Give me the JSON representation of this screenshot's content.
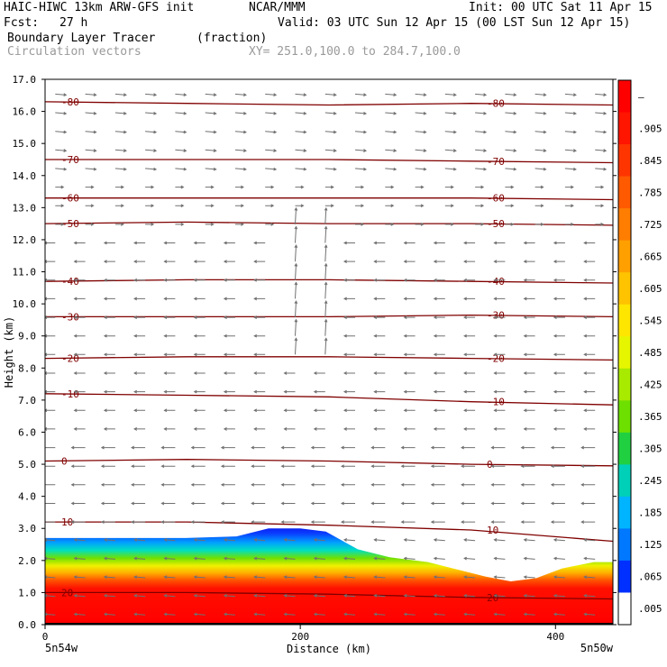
{
  "header": {
    "model": "HAIC-HIWC 13km ARW-GFS init",
    "center": "NCAR/MMM",
    "init": "Init: 00 UTC Sat 11 Apr 15",
    "fcst_label": "Fcst:",
    "fcst_value": "27 h",
    "valid": "Valid: 03 UTC Sun 12 Apr 15 (00 LST Sun 12 Apr 15)",
    "field": "Boundary Layer Tracer",
    "field_units": "(fraction)",
    "overlay": "Circulation vectors",
    "xy": "XY= 251.0,100.0 to 284.7,100.0"
  },
  "chart_data": {
    "type": "heatmap",
    "title": "Boundary Layer Tracer",
    "ylabel": "Height (km)",
    "xlabel": "Distance (km)",
    "xlim": [
      0,
      445
    ],
    "ylim": [
      0,
      17
    ],
    "x_ticks": [
      0,
      200,
      400
    ],
    "y_ticks": [
      "0.0",
      "1.0",
      "2.0",
      "3.0",
      "4.0",
      "5.0",
      "6.0",
      "7.0",
      "8.0",
      "9.0",
      "10.0",
      "11.0",
      "12.0",
      "13.0",
      "14.0",
      "15.0",
      "16.0",
      "17.0"
    ],
    "x_end_labels": [
      "5n54w",
      "5n50w"
    ],
    "colorbar_labels": [
      "–",
      ".905",
      ".845",
      ".785",
      ".725",
      ".665",
      ".605",
      ".545",
      ".485",
      ".425",
      ".365",
      ".305",
      ".245",
      ".185",
      ".125",
      ".065",
      ".005"
    ],
    "colorbar_colors": [
      "#ff0000",
      "#ff1500",
      "#ff3500",
      "#ff5a00",
      "#ff7d00",
      "#ffa000",
      "#ffc300",
      "#ffe600",
      "#e6f500",
      "#a8ea00",
      "#6ee000",
      "#20d040",
      "#00d0b8",
      "#00b4ff",
      "#0078ff",
      "#0030ff",
      "#ffffff"
    ],
    "tracer_top_km": [
      [
        0,
        2.7
      ],
      [
        60,
        2.7
      ],
      [
        110,
        2.7
      ],
      [
        150,
        2.75
      ],
      [
        175,
        3.0
      ],
      [
        200,
        3.0
      ],
      [
        220,
        2.9
      ],
      [
        245,
        2.35
      ],
      [
        270,
        2.1
      ],
      [
        300,
        1.95
      ],
      [
        325,
        1.7
      ],
      [
        345,
        1.5
      ],
      [
        365,
        1.35
      ],
      [
        385,
        1.45
      ],
      [
        405,
        1.75
      ],
      [
        430,
        1.95
      ],
      [
        445,
        1.95
      ]
    ],
    "temperature_contours": [
      {
        "value": 20,
        "label": "20",
        "km": [
          1.0,
          1.0,
          0.95,
          0.85,
          0.8
        ]
      },
      {
        "value": 10,
        "label": "10",
        "km": [
          3.2,
          3.2,
          3.1,
          2.95,
          2.6
        ]
      },
      {
        "value": 0,
        "label": "0",
        "km": [
          5.1,
          5.15,
          5.1,
          5.0,
          4.95
        ]
      },
      {
        "value": -10,
        "label": "-10",
        "km": [
          7.2,
          7.15,
          7.1,
          6.95,
          6.85
        ]
      },
      {
        "value": -20,
        "label": "-20",
        "km": [
          8.3,
          8.35,
          8.35,
          8.3,
          8.25
        ]
      },
      {
        "value": -30,
        "label": "-30",
        "km": [
          9.6,
          9.6,
          9.6,
          9.65,
          9.6
        ]
      },
      {
        "value": -40,
        "label": "-40",
        "km": [
          10.7,
          10.75,
          10.75,
          10.7,
          10.65
        ]
      },
      {
        "value": -50,
        "label": "-50",
        "km": [
          12.5,
          12.55,
          12.5,
          12.5,
          12.45
        ]
      },
      {
        "value": -60,
        "label": "-60",
        "km": [
          13.3,
          13.3,
          13.3,
          13.3,
          13.25
        ]
      },
      {
        "value": -70,
        "label": "-70",
        "km": [
          14.5,
          14.5,
          14.5,
          14.45,
          14.4
        ]
      },
      {
        "value": -80,
        "label": "-80",
        "km": [
          16.3,
          16.25,
          16.2,
          16.25,
          16.2
        ]
      }
    ]
  }
}
